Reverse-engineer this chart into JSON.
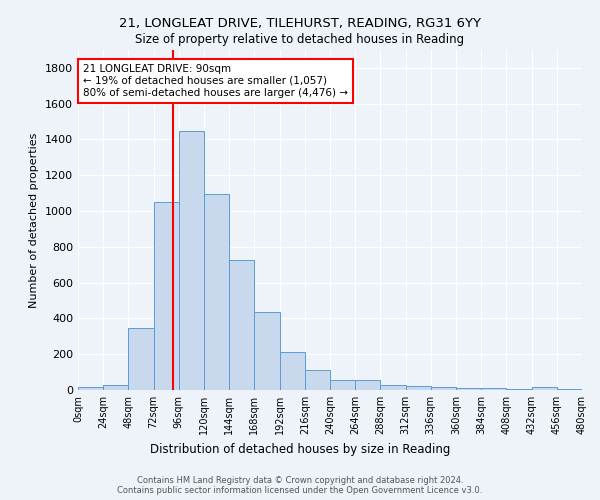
{
  "title1": "21, LONGLEAT DRIVE, TILEHURST, READING, RG31 6YY",
  "title2": "Size of property relative to detached houses in Reading",
  "xlabel": "Distribution of detached houses by size in Reading",
  "ylabel": "Number of detached properties",
  "bin_edges": [
    0,
    24,
    48,
    72,
    96,
    120,
    144,
    168,
    192,
    216,
    240,
    264,
    288,
    312,
    336,
    360,
    384,
    408,
    432,
    456,
    480
  ],
  "bar_heights": [
    15,
    30,
    345,
    1050,
    1450,
    1095,
    725,
    435,
    215,
    110,
    58,
    55,
    30,
    20,
    18,
    12,
    10,
    8,
    15,
    5
  ],
  "bar_color": "#c9d9ed",
  "bar_edgecolor": "#5b9bd5",
  "vline_x": 90,
  "vline_color": "red",
  "annotation_text": "21 LONGLEAT DRIVE: 90sqm\n← 19% of detached houses are smaller (1,057)\n80% of semi-detached houses are larger (4,476) →",
  "annotation_box_color": "white",
  "annotation_box_edgecolor": "red",
  "ylim": [
    0,
    1900
  ],
  "yticks": [
    0,
    200,
    400,
    600,
    800,
    1000,
    1200,
    1400,
    1600,
    1800
  ],
  "xtick_labels": [
    "0sqm",
    "24sqm",
    "48sqm",
    "72sqm",
    "96sqm",
    "120sqm",
    "144sqm",
    "168sqm",
    "192sqm",
    "216sqm",
    "240sqm",
    "264sqm",
    "288sqm",
    "312sqm",
    "336sqm",
    "360sqm",
    "384sqm",
    "408sqm",
    "432sqm",
    "456sqm",
    "480sqm"
  ],
  "footer_text": "Contains HM Land Registry data © Crown copyright and database right 2024.\nContains public sector information licensed under the Open Government Licence v3.0.",
  "bg_color": "#eef2f9"
}
